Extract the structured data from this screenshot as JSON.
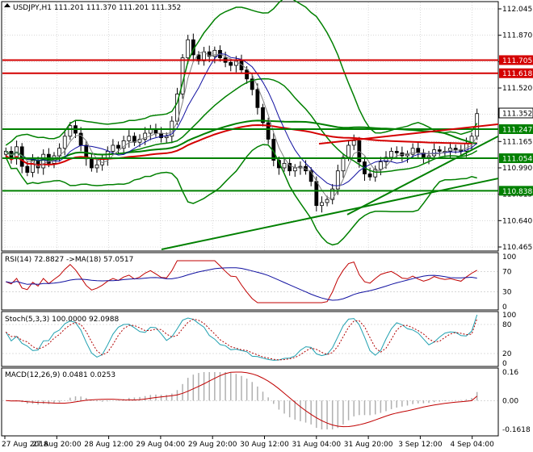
{
  "header": {
    "main": "USDJPY,H1  111.201 111.370 111.201 111.352",
    "rsi": "RSI(14) 72.8827   ->MA(18) 57.0517",
    "stoch": "Stoch(5,3,3) 100.0000 92.0988",
    "macd": "MACD(12,26,9) 0.0481 0.0253"
  },
  "colors": {
    "bg": "#ffffff",
    "grid": "#c0c0c0",
    "frame": "#000000",
    "candle": "#000000",
    "red": "#d40000",
    "green": "#008000",
    "blue": "#1010a0",
    "gray": "#808080",
    "rsi": "#c00000",
    "stoch_main": "#20a0b0",
    "stoch_signal": "#b00000",
    "macd_hist": "#b0b0b0",
    "macd_signal": "#c00000"
  },
  "chart_data": [
    {
      "type": "candlestick",
      "symbol": "USDJPY",
      "timeframe": "H1",
      "ohlc_current": {
        "open": 111.201,
        "high": 111.37,
        "low": 111.201,
        "close": 111.352
      },
      "ylim": [
        110.465,
        112.045
      ],
      "yticks": [
        "112.045",
        "111.870",
        "111.695",
        "111.520",
        "111.345",
        "111.165",
        "110.990",
        "110.815",
        "110.640",
        "110.465"
      ],
      "xticks": [
        "27 Aug 2018",
        "27 Aug 20:00",
        "28 Aug 12:00",
        "29 Aug 04:00",
        "29 Aug 20:00",
        "30 Aug 12:00",
        "31 Aug 04:00",
        "31 Aug 20:00",
        "3 Sep 12:00",
        "4 Sep 04:00"
      ],
      "levels": [
        {
          "label": "111.705",
          "value": 111.705,
          "color": "red"
        },
        {
          "label": "111.618",
          "value": 111.618,
          "color": "red"
        },
        {
          "label": "111.247",
          "value": 111.247,
          "color": "green"
        },
        {
          "label": "111.054",
          "value": 111.054,
          "color": "green"
        },
        {
          "label": "110.838",
          "value": 110.838,
          "color": "green"
        }
      ],
      "current_price_label": "111.352",
      "closes": [
        111.1,
        111.05,
        111.13,
        111.0,
        110.96,
        111.04,
        110.99,
        111.08,
        111.02,
        111.07,
        111.12,
        111.2,
        111.27,
        111.22,
        111.14,
        111.05,
        110.99,
        111.01,
        111.05,
        111.1,
        111.14,
        111.12,
        111.17,
        111.2,
        111.16,
        111.18,
        111.22,
        111.25,
        111.22,
        111.19,
        111.2,
        111.3,
        111.48,
        111.72,
        111.84,
        111.74,
        111.7,
        111.76,
        111.73,
        111.77,
        111.72,
        111.69,
        111.67,
        111.7,
        111.64,
        111.58,
        111.51,
        111.39,
        111.29,
        111.18,
        111.04,
        110.99,
        111.02,
        110.97,
        110.99,
        111.0,
        110.97,
        110.9,
        110.74,
        110.76,
        110.78,
        110.85,
        110.97,
        111.06,
        111.14,
        111.17,
        111.03,
        110.95,
        110.93,
        110.98,
        111.03,
        111.06,
        111.1,
        111.09,
        111.07,
        111.08,
        111.12,
        111.09,
        111.06,
        111.07,
        111.11,
        111.1,
        111.1,
        111.12,
        111.11,
        111.1,
        111.15,
        111.2,
        111.35
      ]
    },
    {
      "type": "line",
      "name": "RSI(14)",
      "value": 72.8827,
      "ma_label": "MA(18)",
      "ma_value": 57.0517,
      "ylim": [
        0,
        100
      ],
      "yticks": [
        "100",
        "70",
        "30",
        "0"
      ]
    },
    {
      "type": "line",
      "name": "Stoch(5,3,3)",
      "main": 100.0,
      "signal": 92.0988,
      "ylim": [
        0,
        100
      ],
      "yticks": [
        "100",
        "80",
        "20",
        "0"
      ]
    },
    {
      "type": "bar",
      "name": "MACD(12,26,9)",
      "macd": 0.0481,
      "signal": 0.0253,
      "ylim": [
        -0.1618,
        0.16
      ],
      "yticks": [
        "0.16",
        "0.00",
        "-0.1618"
      ]
    }
  ]
}
